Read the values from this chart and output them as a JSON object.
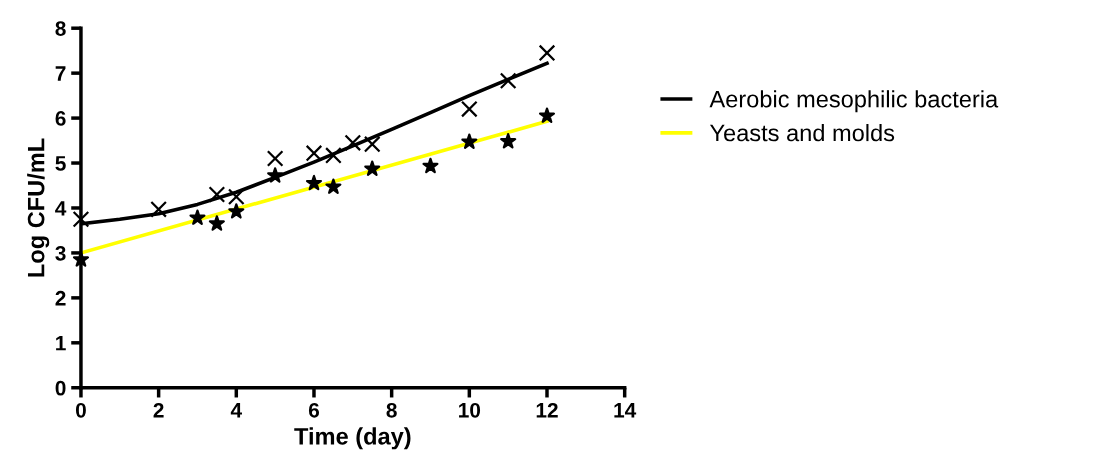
{
  "chart_data": {
    "type": "line",
    "xlabel": "Time (day)",
    "ylabel": "Log CFU/mL",
    "xlim": [
      0,
      14
    ],
    "xticks": [
      0,
      2,
      4,
      6,
      8,
      10,
      12,
      14
    ],
    "ylim": [
      0,
      8
    ],
    "yticks": [
      0,
      1,
      2,
      3,
      4,
      5,
      6,
      7,
      8
    ],
    "grid": false,
    "legend": "right",
    "series": [
      {
        "type": "scatter",
        "marker": "cross",
        "color": "#000000",
        "x": [
          0,
          2,
          3.5,
          4,
          5,
          6,
          6.5,
          7,
          7.5,
          10,
          11,
          12
        ],
        "values": [
          3.75,
          3.97,
          4.3,
          4.25,
          5.1,
          5.22,
          5.17,
          5.45,
          5.42,
          6.2,
          6.83,
          7.45
        ]
      },
      {
        "type": "scatter",
        "marker": "star",
        "color": "#000000",
        "x": [
          0,
          3,
          3.5,
          4,
          5,
          6,
          6.5,
          7.5,
          9,
          10,
          11,
          12
        ],
        "values": [
          2.85,
          3.78,
          3.65,
          3.92,
          4.72,
          4.55,
          4.47,
          4.87,
          4.93,
          5.47,
          5.48,
          6.05
        ]
      },
      {
        "name": "Aerobic mesophilic bacteria",
        "color": "#000000",
        "marker": "none",
        "x": [
          0,
          1,
          2,
          3,
          4,
          5,
          6,
          7,
          8,
          9,
          10,
          11,
          12
        ],
        "values": [
          3.65,
          3.75,
          3.87,
          4.08,
          4.35,
          4.68,
          5.02,
          5.38,
          5.75,
          6.12,
          6.5,
          6.86,
          7.22
        ]
      },
      {
        "name": "Yeasts and molds",
        "color": "#ffff00",
        "marker": "none",
        "x": [
          0,
          12
        ],
        "values": [
          3.0,
          5.93
        ]
      }
    ]
  }
}
